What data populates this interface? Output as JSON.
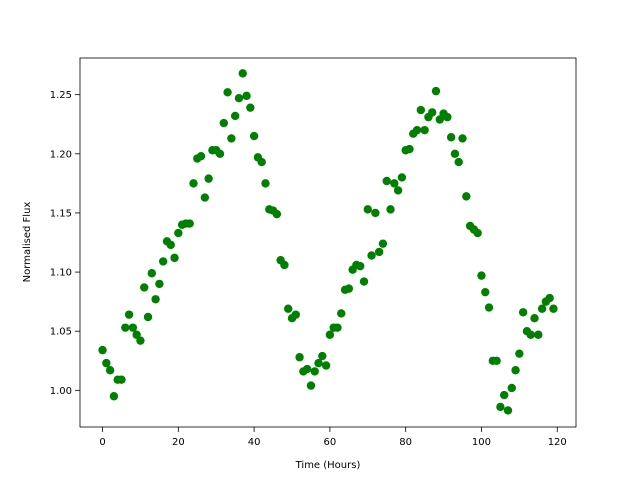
{
  "chart_data": {
    "type": "scatter",
    "xlabel": "Time (Hours)",
    "ylabel": "Normalised Flux",
    "color": "#008000",
    "x": [
      0,
      1,
      2,
      3,
      4,
      5,
      6,
      7,
      8,
      9,
      10,
      11,
      12,
      13,
      14,
      15,
      16,
      17,
      18,
      19,
      20,
      21,
      22,
      23,
      24,
      25,
      26,
      27,
      28,
      29,
      30,
      31,
      32,
      33,
      34,
      35,
      36,
      37,
      38,
      39,
      40,
      41,
      42,
      43,
      44,
      45,
      46,
      47,
      48,
      49,
      50,
      51,
      52,
      53,
      54,
      55,
      56,
      57,
      58,
      59,
      60,
      61,
      62,
      63,
      64,
      65,
      66,
      67,
      68,
      69,
      70,
      71,
      72,
      73,
      74,
      75,
      76,
      77,
      78,
      79,
      80,
      81,
      82,
      83,
      84,
      85,
      86,
      87,
      88,
      89,
      90,
      91,
      92,
      93,
      94,
      95,
      96,
      97,
      98,
      99,
      100,
      101,
      102,
      103,
      104,
      105,
      106,
      107,
      108,
      109,
      110,
      111,
      112,
      113,
      114,
      115,
      116,
      117,
      118,
      119
    ],
    "values": [
      1.034,
      1.023,
      1.017,
      0.995,
      1.009,
      1.009,
      1.053,
      1.064,
      1.053,
      1.047,
      1.042,
      1.087,
      1.062,
      1.099,
      1.077,
      1.09,
      1.109,
      1.126,
      1.123,
      1.112,
      1.133,
      1.14,
      1.141,
      1.141,
      1.175,
      1.196,
      1.198,
      1.163,
      1.179,
      1.203,
      1.203,
      1.2,
      1.226,
      1.252,
      1.213,
      1.232,
      1.247,
      1.268,
      1.249,
      1.239,
      1.215,
      1.197,
      1.193,
      1.175,
      1.153,
      1.152,
      1.149,
      1.11,
      1.106,
      1.069,
      1.061,
      1.064,
      1.028,
      1.016,
      1.018,
      1.004,
      1.016,
      1.023,
      1.029,
      1.021,
      1.047,
      1.053,
      1.053,
      1.065,
      1.085,
      1.086,
      1.102,
      1.106,
      1.105,
      1.092,
      1.153,
      1.114,
      1.15,
      1.117,
      1.124,
      1.177,
      1.153,
      1.175,
      1.169,
      1.18,
      1.203,
      1.204,
      1.217,
      1.22,
      1.237,
      1.22,
      1.231,
      1.235,
      1.253,
      1.229,
      1.234,
      1.231,
      1.214,
      1.2,
      1.193,
      1.213,
      1.164,
      1.139,
      1.136,
      1.133,
      1.097,
      1.083,
      1.07,
      1.025,
      1.025,
      0.986,
      0.996,
      0.983,
      1.002,
      1.017,
      1.031,
      1.066,
      1.05,
      1.047,
      1.061,
      1.047,
      1.069,
      1.075,
      1.078,
      1.069
    ],
    "xlim": [
      -5.95,
      124.95
    ],
    "ylim": [
      0.969,
      1.281
    ],
    "xticks": [
      0,
      20,
      40,
      60,
      80,
      100,
      120
    ],
    "yticks": [
      {
        "value": 1.0,
        "label": "1.00"
      },
      {
        "value": 1.05,
        "label": "1.05"
      },
      {
        "value": 1.1,
        "label": "1.10"
      },
      {
        "value": 1.15,
        "label": "1.15"
      },
      {
        "value": 1.2,
        "label": "1.20"
      },
      {
        "value": 1.25,
        "label": "1.25"
      }
    ],
    "grid": false
  }
}
